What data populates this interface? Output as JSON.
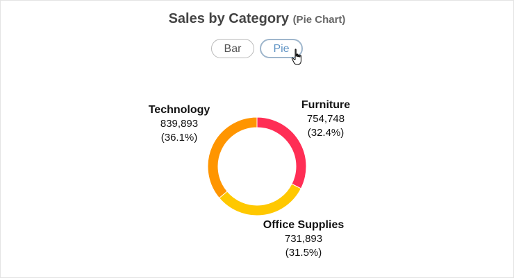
{
  "header": {
    "title": "Sales by Category",
    "subtitle": "(Pie Chart)"
  },
  "toggle": {
    "bar_label": "Bar",
    "pie_label": "Pie",
    "selected": "Pie"
  },
  "chart_data": {
    "type": "pie",
    "style": "donut",
    "title": "Sales by Category",
    "subtitle": "(Pie Chart)",
    "categories": [
      "Furniture",
      "Office Supplies",
      "Technology"
    ],
    "values": [
      754748,
      731893,
      839893
    ],
    "value_labels": [
      "754,748",
      "731,893",
      "839,893"
    ],
    "percent_labels": [
      "(32.4%)",
      "(31.5%)",
      "(36.1%)"
    ],
    "colors": [
      "#ff2e55",
      "#ffc800",
      "#ff9500"
    ],
    "legend": "none"
  }
}
